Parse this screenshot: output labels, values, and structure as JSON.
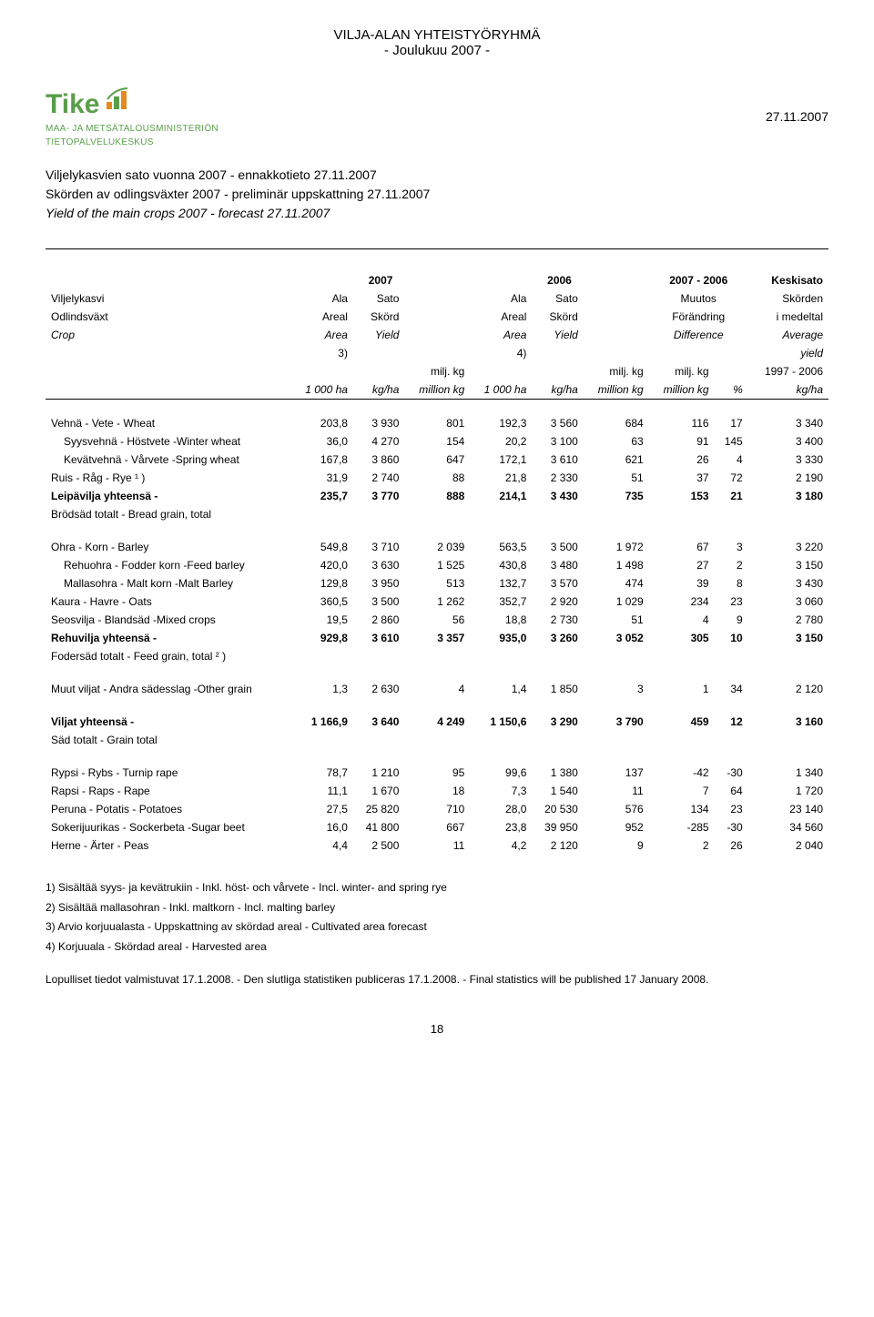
{
  "docHeader": {
    "line1": "VILJA-ALAN YHTEISTYÖRYHMÄ",
    "line2": "- Joulukuu 2007 -"
  },
  "logo": {
    "name": "Tike",
    "sub1": "MAA- JA METSÄTALOUSMINISTERIÖN",
    "sub2": "TIETOPALVELUKESKUS",
    "colors": {
      "green": "#5a9e4a",
      "orange": "#e38b1f"
    }
  },
  "dateRight": "27.11.2007",
  "titles": {
    "fi": "Viljelykasvien sato vuonna 2007 - ennakkotieto 27.11.2007",
    "sv": "Skörden av odlingsväxter 2007 - preliminär uppskattning 27.11.2007",
    "en": "Yield of the main crops 2007 - forecast 27.11.2007"
  },
  "tableHeader": {
    "y2007": "2007",
    "y2006": "2006",
    "diffPeriod": "2007 - 2006",
    "keskisato": "Keskisato",
    "viljelykasvi": "Viljelykasvi",
    "odlindsvaxt": "Odlindsväxt",
    "crop": "Crop",
    "ala": "Ala",
    "sato": "Sato",
    "areal": "Areal",
    "skord": "Skörd",
    "area": "Area",
    "yield": "Yield",
    "muutos": "Muutos",
    "forandring": "Förändring",
    "difference": "Difference",
    "skorden": "Skörden",
    "imedetal": "i medeltal",
    "average": "Average",
    "yieldWord": "yield",
    "note3": "3)",
    "note4": "4)",
    "miljkg": "milj. kg",
    "millionkg": "million kg",
    "ha1000": "1 000 ha",
    "kgha": "kg/ha",
    "pct": "%",
    "period": "1997 - 2006"
  },
  "rows": [
    {
      "label": "Vehnä - Vete - Wheat",
      "indent": false,
      "style": "",
      "v": [
        "203,8",
        "3 930",
        "801",
        "192,3",
        "3 560",
        "684",
        "116",
        "17",
        "3 340"
      ]
    },
    {
      "label": "Syysvehnä - Höstvete -Winter wheat",
      "indent": true,
      "style": "",
      "v": [
        "36,0",
        "4 270",
        "154",
        "20,2",
        "3 100",
        "63",
        "91",
        "145",
        "3 400"
      ]
    },
    {
      "label": "Kevätvehnä - Vårvete -Spring wheat",
      "indent": true,
      "style": "",
      "v": [
        "167,8",
        "3 860",
        "647",
        "172,1",
        "3 610",
        "621",
        "26",
        "4",
        "3 330"
      ]
    },
    {
      "label": "Ruis - Råg - Rye  ¹ )",
      "indent": false,
      "style": "",
      "v": [
        "31,9",
        "2 740",
        "88",
        "21,8",
        "2 330",
        "51",
        "37",
        "72",
        "2 190"
      ]
    },
    {
      "label": "Leipävilja yhteensä -",
      "indent": false,
      "style": "bold",
      "v": [
        "235,7",
        "3 770",
        "888",
        "214,1",
        "3 430",
        "735",
        "153",
        "21",
        "3 180"
      ]
    },
    {
      "label": "Brödsäd totalt - Bread grain, total",
      "indent": false,
      "style": "",
      "v": [
        "",
        "",
        "",
        "",
        "",
        "",
        "",
        "",
        ""
      ]
    }
  ],
  "rows2": [
    {
      "label": "Ohra  -  Korn - Barley",
      "indent": false,
      "style": "",
      "v": [
        "549,8",
        "3 710",
        "2 039",
        "563,5",
        "3 500",
        "1 972",
        "67",
        "3",
        "3 220"
      ]
    },
    {
      "label": "Rehuohra - Fodder korn -Feed barley",
      "indent": true,
      "style": "",
      "v": [
        "420,0",
        "3 630",
        "1 525",
        "430,8",
        "3 480",
        "1 498",
        "27",
        "2",
        "3 150"
      ]
    },
    {
      "label": "Mallasohra  -  Malt korn  -Malt Barley",
      "indent": true,
      "style": "",
      "v": [
        "129,8",
        "3 950",
        "513",
        "132,7",
        "3 570",
        "474",
        "39",
        "8",
        "3 430"
      ]
    },
    {
      "label": "Kaura - Havre - Oats",
      "indent": false,
      "style": "",
      "v": [
        "360,5",
        "3 500",
        "1 262",
        "352,7",
        "2 920",
        "1 029",
        "234",
        "23",
        "3 060"
      ]
    },
    {
      "label": "Seosvilja - Blandsäd -Mixed crops",
      "indent": false,
      "style": "",
      "v": [
        "19,5",
        "2 860",
        "56",
        "18,8",
        "2 730",
        "51",
        "4",
        "9",
        "2 780"
      ]
    },
    {
      "label": "Rehuvilja yhteensä -",
      "indent": false,
      "style": "bold",
      "v": [
        "929,8",
        "3 610",
        "3 357",
        "935,0",
        "3 260",
        "3 052",
        "305",
        "10",
        "3 150"
      ]
    },
    {
      "label": "Fodersäd totalt  - Feed grain, total ² )",
      "indent": false,
      "style": "",
      "v": [
        "",
        "",
        "",
        "",
        "",
        "",
        "",
        "",
        ""
      ]
    }
  ],
  "rows3": [
    {
      "label": "Muut viljat - Andra sädesslag -Other grain",
      "indent": false,
      "style": "",
      "v": [
        "1,3",
        "2 630",
        "4",
        "1,4",
        "1 850",
        "3",
        "1",
        "34",
        "2 120"
      ]
    }
  ],
  "rows4": [
    {
      "label": "Viljat yhteensä -",
      "indent": false,
      "style": "bold",
      "v": [
        "1 166,9",
        "3 640",
        "4 249",
        "1 150,6",
        "3 290",
        "3 790",
        "459",
        "12",
        "3 160"
      ]
    },
    {
      "label": "Säd totalt - Grain total",
      "indent": false,
      "style": "",
      "v": [
        "",
        "",
        "",
        "",
        "",
        "",
        "",
        "",
        ""
      ]
    }
  ],
  "rows5": [
    {
      "label": "Rypsi - Rybs - Turnip rape",
      "indent": false,
      "style": "",
      "v": [
        "78,7",
        "1 210",
        "95",
        "99,6",
        "1 380",
        "137",
        "-42",
        "-30",
        "1 340"
      ]
    },
    {
      "label": "Rapsi - Raps - Rape",
      "indent": false,
      "style": "",
      "v": [
        "11,1",
        "1 670",
        "18",
        "7,3",
        "1 540",
        "11",
        "7",
        "64",
        "1 720"
      ]
    },
    {
      "label": "Peruna - Potatis - Potatoes",
      "indent": false,
      "style": "",
      "v": [
        "27,5",
        "25 820",
        "710",
        "28,0",
        "20 530",
        "576",
        "134",
        "23",
        "23 140"
      ]
    },
    {
      "label": "Sokerijuurikas - Sockerbeta -Sugar beet",
      "indent": false,
      "style": "",
      "v": [
        "16,0",
        "41 800",
        "667",
        "23,8",
        "39 950",
        "952",
        "-285",
        "-30",
        "34 560"
      ]
    },
    {
      "label": "Herne - Ärter - Peas",
      "indent": false,
      "style": "",
      "v": [
        "4,4",
        "2 500",
        "11",
        "4,2",
        "2 120",
        "9",
        "2",
        "26",
        "2 040"
      ]
    }
  ],
  "footnotes": [
    "1) Sisältää syys- ja kevätrukiin - Inkl. höst- och vårvete - Incl. winter- and spring rye",
    "2) Sisältää mallasohran - Inkl. maltkorn -  Incl. malting barley",
    "3) Arvio korjuualasta - Uppskattning av skördad areal - Cultivated area forecast",
    "4) Korjuuala - Skördad areal - Harvested area"
  ],
  "finalNote": "Lopulliset tiedot valmistuvat 17.1.2008. - Den slutliga statistiken publiceras 17.1.2008. -  Final statistics will be published 17 January 2008.",
  "pageNum": "18"
}
